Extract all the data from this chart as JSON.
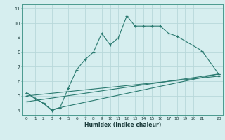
{
  "xlabel": "Humidex (Indice chaleur)",
  "bg_color": "#d6eeef",
  "grid_color": "#b8d8da",
  "line_color": "#2a7a70",
  "xlim": [
    -0.5,
    23.5
  ],
  "ylim": [
    3.7,
    11.3
  ],
  "xticks": [
    0,
    1,
    2,
    3,
    4,
    5,
    6,
    7,
    8,
    9,
    10,
    11,
    12,
    13,
    14,
    15,
    16,
    17,
    18,
    19,
    20,
    21,
    23
  ],
  "yticks": [
    4,
    5,
    6,
    7,
    8,
    9,
    10,
    11
  ],
  "series1_x": [
    0,
    1,
    2,
    3,
    4,
    5,
    6,
    7,
    8,
    9,
    10,
    11,
    12,
    13,
    14,
    15,
    16,
    17,
    18,
    21,
    23
  ],
  "series1_y": [
    5.2,
    4.8,
    4.5,
    4.0,
    4.2,
    5.55,
    6.8,
    7.5,
    8.0,
    9.3,
    8.5,
    9.0,
    10.5,
    9.8,
    9.8,
    9.8,
    9.8,
    9.3,
    9.1,
    8.1,
    6.5
  ],
  "series2_x": [
    0,
    2,
    3,
    4,
    23
  ],
  "series2_y": [
    5.2,
    4.5,
    4.05,
    4.2,
    6.5
  ],
  "series3_x": [
    0,
    23
  ],
  "series3_y": [
    4.6,
    6.5
  ],
  "series4_x": [
    0,
    23
  ],
  "series4_y": [
    5.0,
    6.35
  ]
}
